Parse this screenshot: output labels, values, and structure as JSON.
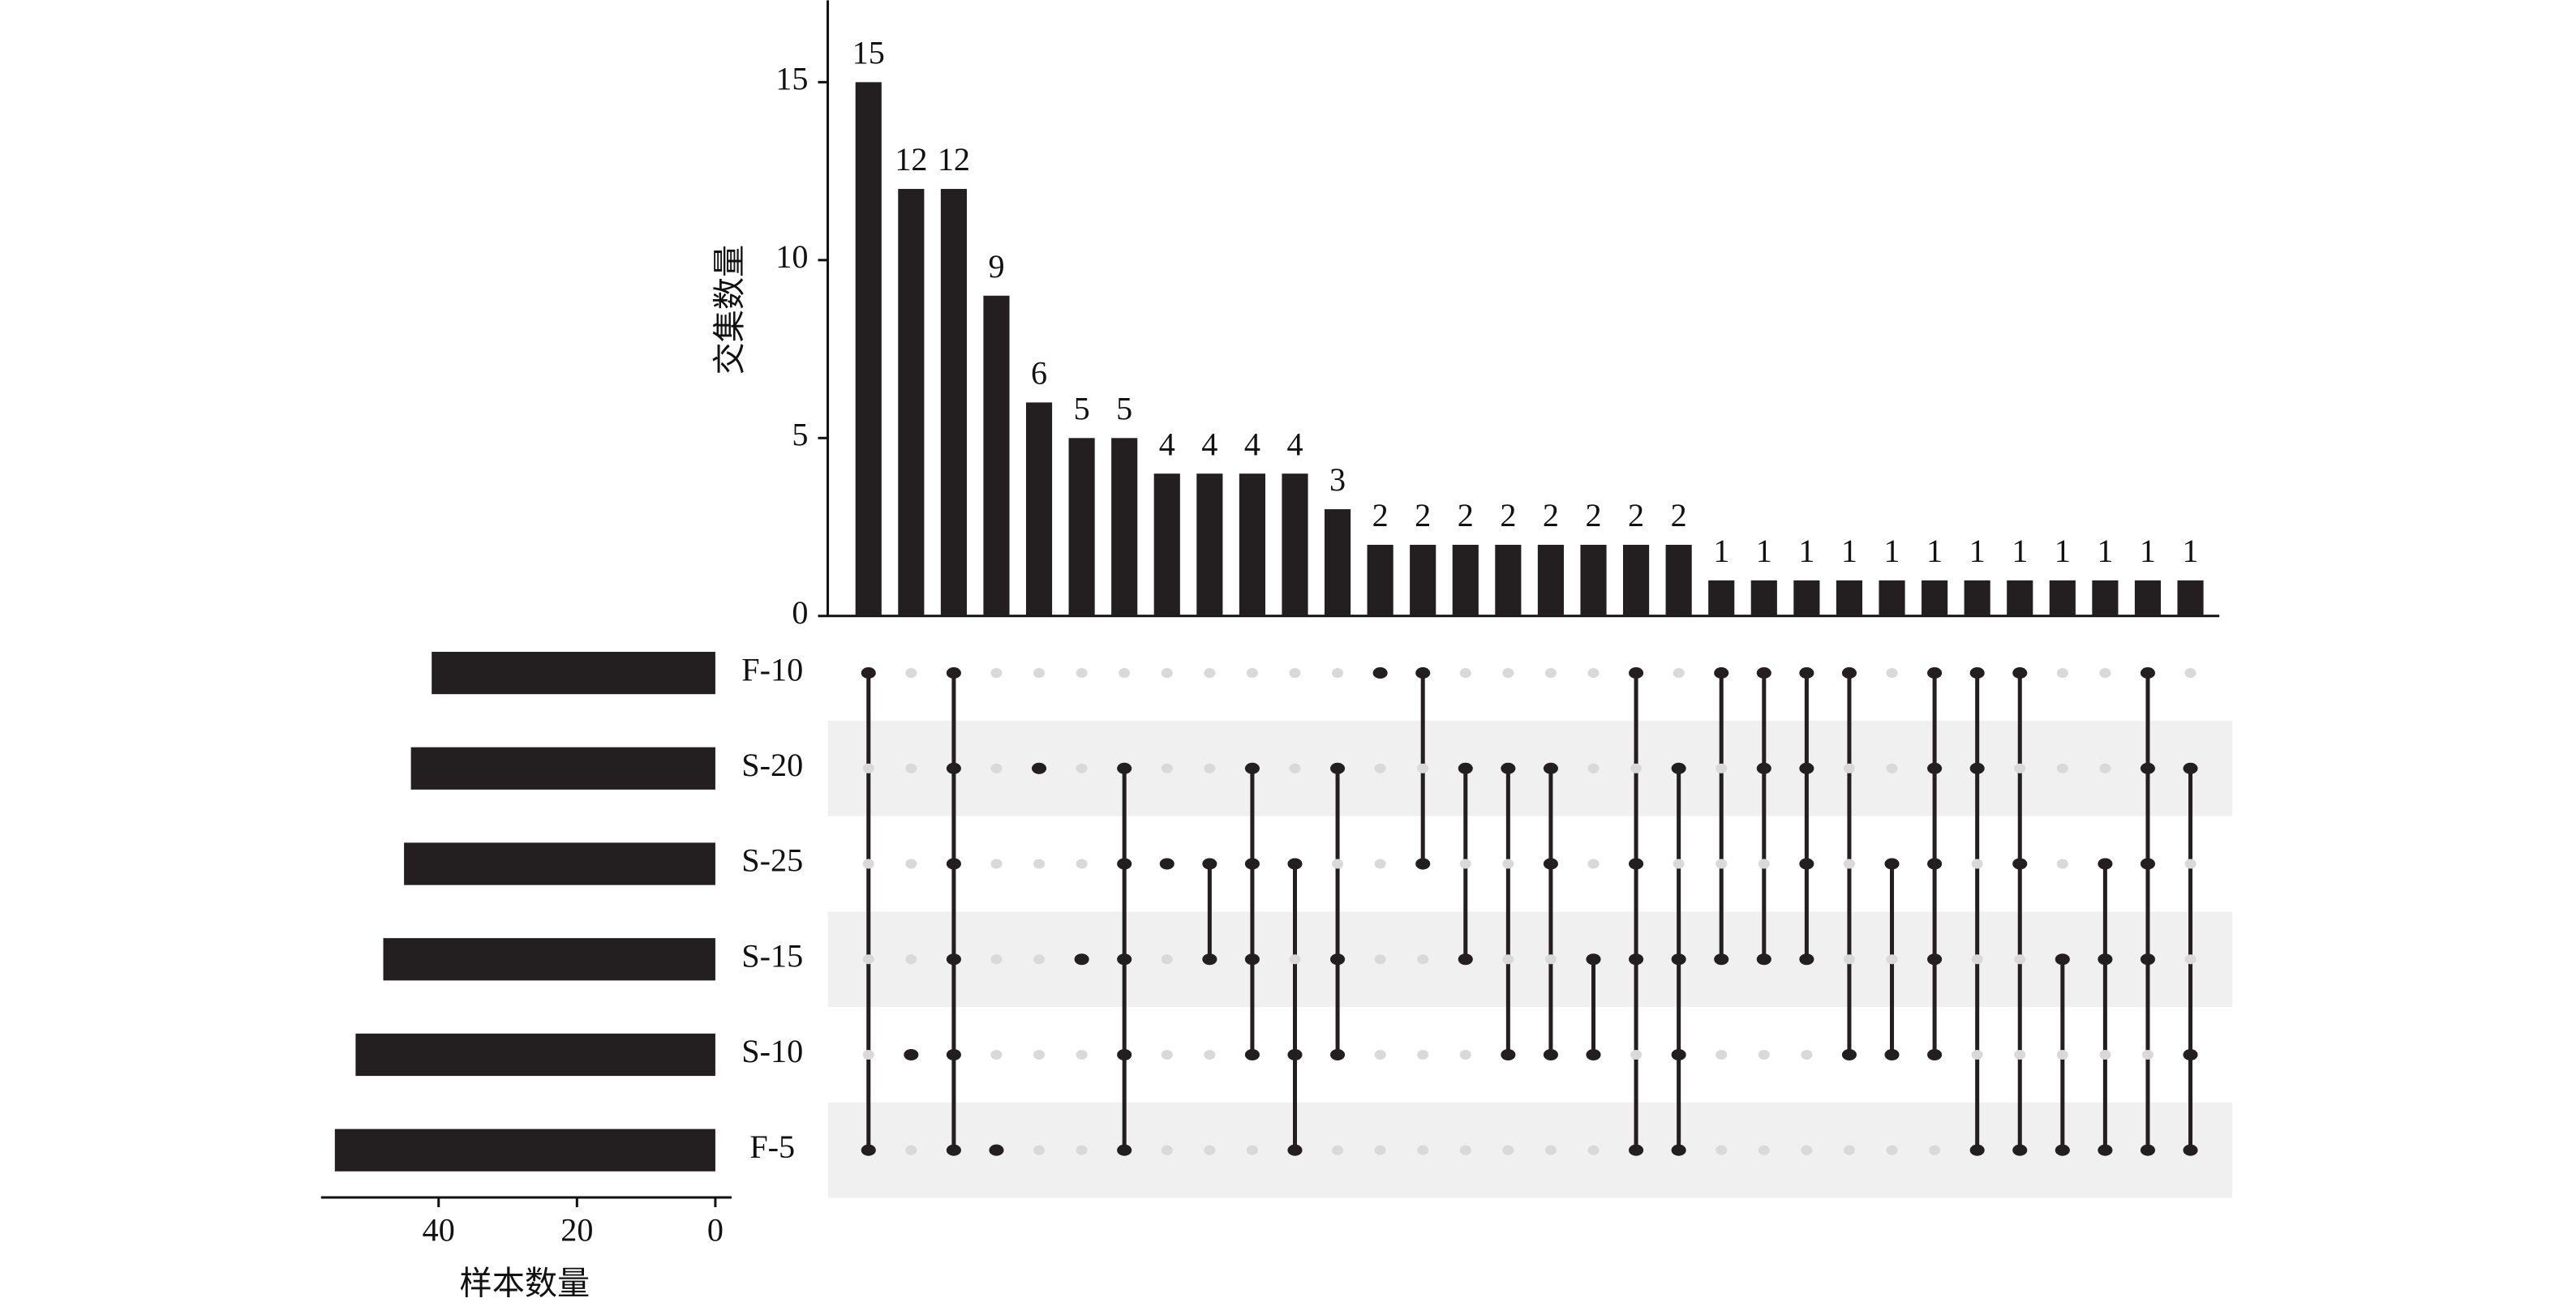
{
  "chart_data": {
    "type": "upset",
    "y_label": "交集数量",
    "x_label": "样本数量",
    "sets": [
      "F-10",
      "S-20",
      "S-25",
      "S-15",
      "S-10",
      "F-5"
    ],
    "set_sizes": [
      41,
      44,
      45,
      48,
      52,
      55
    ],
    "xlim": [
      0,
      57
    ],
    "xticks": [
      0,
      20,
      40
    ],
    "values": [
      15,
      12,
      12,
      9,
      6,
      5,
      5,
      4,
      4,
      4,
      4,
      3,
      2,
      2,
      2,
      2,
      2,
      2,
      2,
      2,
      1,
      1,
      1,
      1,
      1,
      1,
      1,
      1,
      1,
      1,
      1,
      1
    ],
    "ylim": [
      0,
      17.3
    ],
    "yticks": [
      0,
      5,
      10,
      15
    ],
    "matrix": [
      [
        1,
        0,
        0,
        0,
        0,
        1
      ],
      [
        0,
        0,
        0,
        0,
        1,
        0
      ],
      [
        1,
        1,
        1,
        1,
        1,
        1
      ],
      [
        0,
        0,
        0,
        0,
        0,
        1
      ],
      [
        0,
        1,
        0,
        0,
        0,
        0
      ],
      [
        0,
        0,
        0,
        1,
        0,
        0
      ],
      [
        0,
        1,
        1,
        1,
        1,
        1
      ],
      [
        0,
        0,
        1,
        0,
        0,
        0
      ],
      [
        0,
        0,
        1,
        1,
        0,
        0
      ],
      [
        0,
        1,
        1,
        1,
        1,
        0
      ],
      [
        0,
        0,
        1,
        0,
        1,
        1
      ],
      [
        0,
        1,
        0,
        1,
        1,
        0
      ],
      [
        1,
        0,
        0,
        0,
        0,
        0
      ],
      [
        1,
        0,
        1,
        0,
        0,
        0
      ],
      [
        0,
        1,
        0,
        1,
        0,
        0
      ],
      [
        0,
        1,
        0,
        0,
        1,
        0
      ],
      [
        0,
        1,
        1,
        0,
        1,
        0
      ],
      [
        0,
        0,
        0,
        1,
        1,
        0
      ],
      [
        1,
        0,
        1,
        1,
        0,
        1
      ],
      [
        0,
        1,
        0,
        1,
        1,
        1
      ],
      [
        1,
        0,
        0,
        1,
        0,
        0
      ],
      [
        1,
        1,
        0,
        1,
        0,
        0
      ],
      [
        1,
        1,
        1,
        1,
        0,
        0
      ],
      [
        1,
        0,
        0,
        0,
        1,
        0
      ],
      [
        0,
        0,
        1,
        0,
        1,
        0
      ],
      [
        1,
        1,
        1,
        1,
        1,
        0
      ],
      [
        1,
        1,
        0,
        0,
        0,
        1
      ],
      [
        1,
        0,
        1,
        0,
        0,
        1
      ],
      [
        0,
        0,
        0,
        1,
        0,
        1
      ],
      [
        0,
        0,
        1,
        1,
        0,
        1
      ],
      [
        1,
        1,
        1,
        1,
        0,
        1
      ],
      [
        0,
        1,
        0,
        0,
        1,
        1
      ]
    ],
    "color": "#231f20"
  }
}
